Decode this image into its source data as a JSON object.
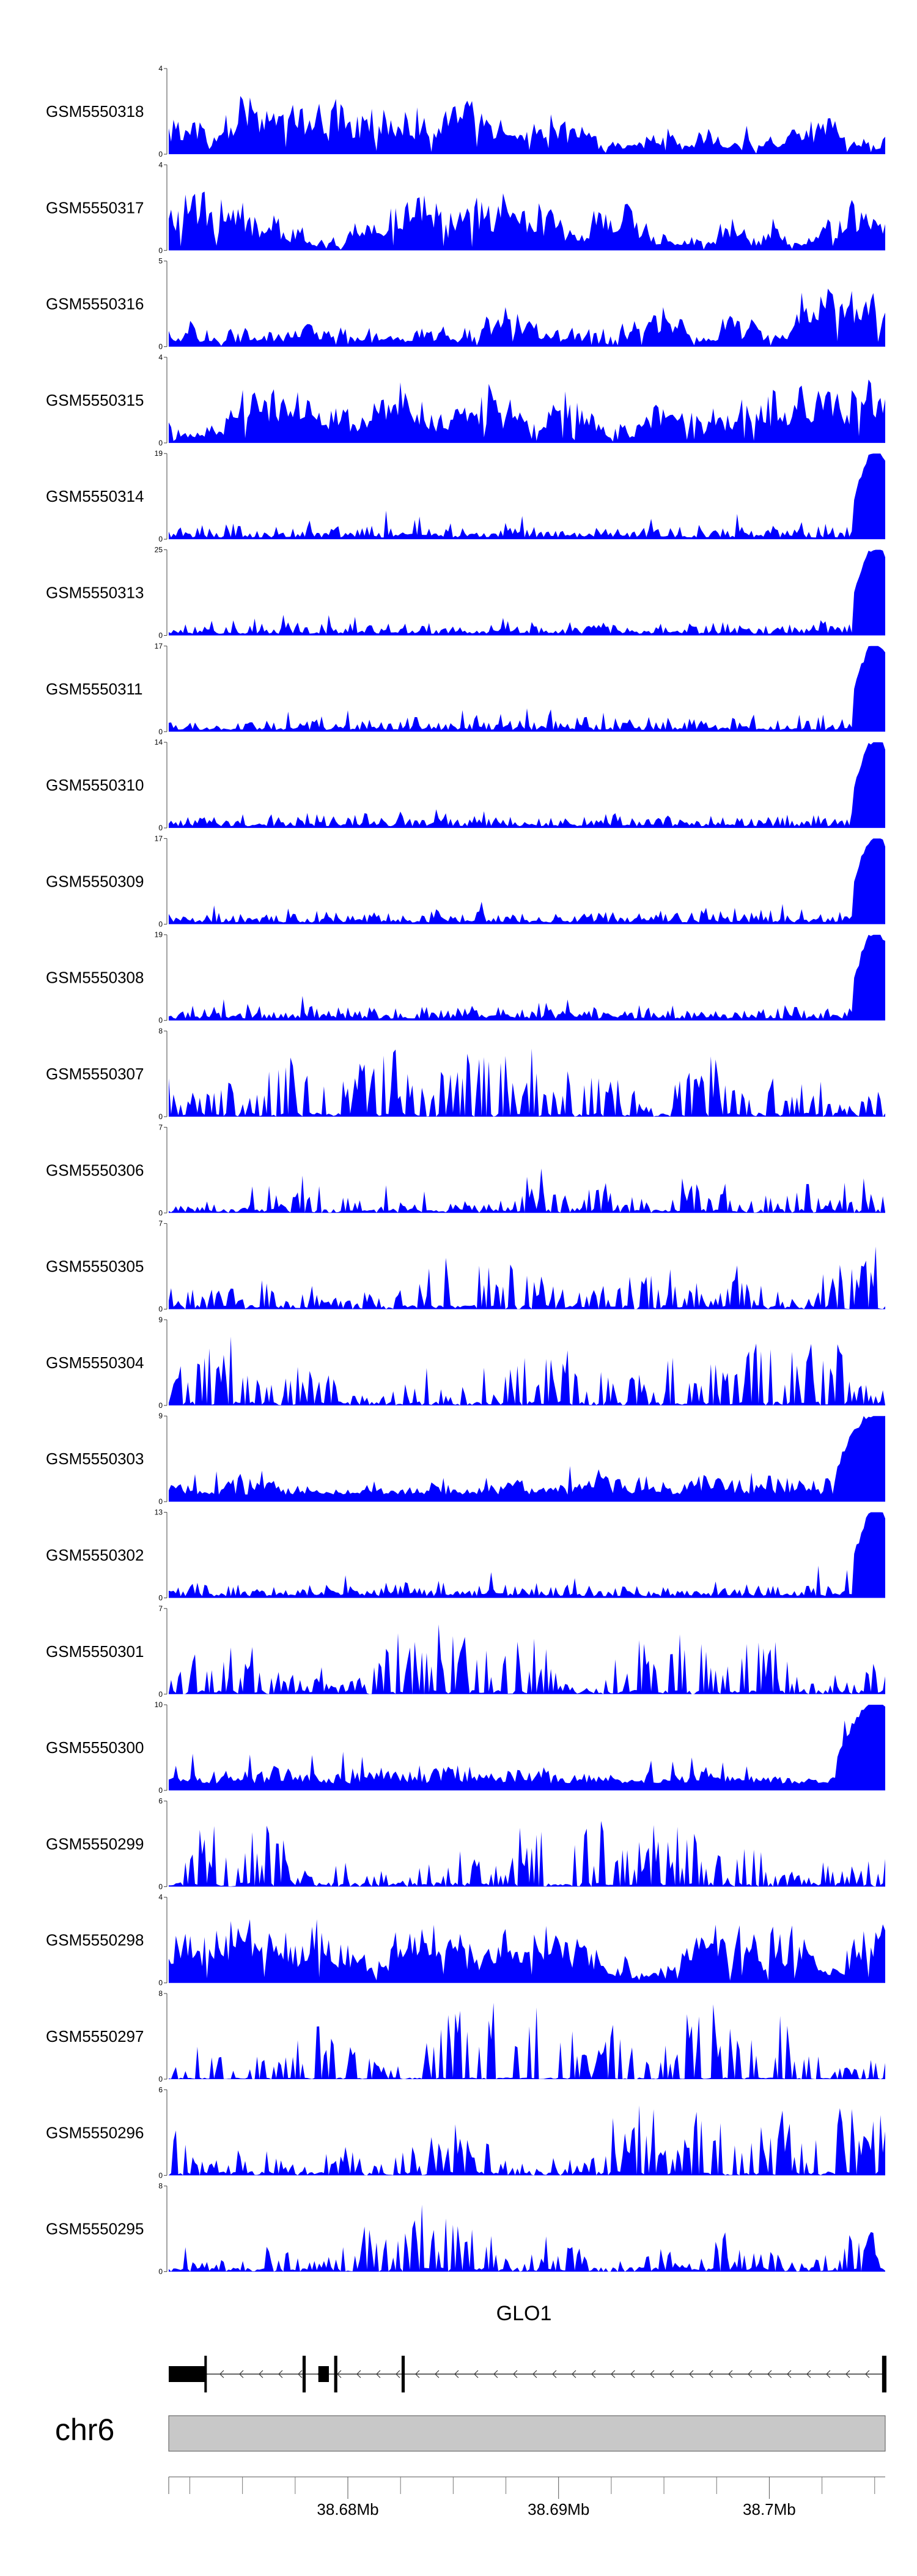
{
  "chart_data": {
    "type": "area",
    "series_color": "#0000ff",
    "x_domain_mb": [
      38.6715,
      38.7055
    ],
    "tracks": [
      {
        "name": "GSM5550318",
        "ymax": 4,
        "ylim": [
          0,
          4
        ],
        "y_ticks": [
          "0",
          "4"
        ],
        "seed": 1,
        "profile": "flat"
      },
      {
        "name": "GSM5550317",
        "ymax": 4,
        "ylim": [
          0,
          4
        ],
        "y_ticks": [
          "0",
          "4"
        ],
        "seed": 2,
        "profile": "flat"
      },
      {
        "name": "GSM5550316",
        "ymax": 5,
        "ylim": [
          0,
          5
        ],
        "y_ticks": [
          "0",
          "5"
        ],
        "seed": 3,
        "profile": "flat"
      },
      {
        "name": "GSM5550315",
        "ymax": 4,
        "ylim": [
          0,
          4
        ],
        "y_ticks": [
          "0",
          "4"
        ],
        "seed": 4,
        "profile": "flat"
      },
      {
        "name": "GSM5550314",
        "ymax": 19,
        "ylim": [
          0,
          19
        ],
        "y_ticks": [
          "0",
          "19"
        ],
        "seed": 5,
        "profile": "endpeak"
      },
      {
        "name": "GSM5550313",
        "ymax": 25,
        "ylim": [
          0,
          25
        ],
        "y_ticks": [
          "0",
          "25"
        ],
        "seed": 6,
        "profile": "endpeak"
      },
      {
        "name": "GSM5550311",
        "ymax": 17,
        "ylim": [
          0,
          17
        ],
        "y_ticks": [
          "0",
          "17"
        ],
        "seed": 7,
        "profile": "endpeak"
      },
      {
        "name": "GSM5550310",
        "ymax": 14,
        "ylim": [
          0,
          14
        ],
        "y_ticks": [
          "0",
          "14"
        ],
        "seed": 8,
        "profile": "endpeak"
      },
      {
        "name": "GSM5550309",
        "ymax": 17,
        "ylim": [
          0,
          17
        ],
        "y_ticks": [
          "0",
          "17"
        ],
        "seed": 9,
        "profile": "endpeak"
      },
      {
        "name": "GSM5550308",
        "ymax": 19,
        "ylim": [
          0,
          19
        ],
        "y_ticks": [
          "0",
          "19"
        ],
        "seed": 10,
        "profile": "endpeak"
      },
      {
        "name": "GSM5550307",
        "ymax": 8,
        "ylim": [
          0,
          8
        ],
        "y_ticks": [
          "0",
          "8"
        ],
        "seed": 11,
        "profile": "sparse"
      },
      {
        "name": "GSM5550306",
        "ymax": 7,
        "ylim": [
          0,
          7
        ],
        "y_ticks": [
          "0",
          "7"
        ],
        "seed": 12,
        "profile": "sparse"
      },
      {
        "name": "GSM5550305",
        "ymax": 7,
        "ylim": [
          0,
          7
        ],
        "y_ticks": [
          "0",
          "7"
        ],
        "seed": 13,
        "profile": "sparse"
      },
      {
        "name": "GSM5550304",
        "ymax": 9,
        "ylim": [
          0,
          9
        ],
        "y_ticks": [
          "0",
          "9"
        ],
        "seed": 14,
        "profile": "sparse"
      },
      {
        "name": "GSM5550303",
        "ymax": 9,
        "ylim": [
          0,
          9
        ],
        "y_ticks": [
          "0",
          "9"
        ],
        "seed": 15,
        "profile": "midend"
      },
      {
        "name": "GSM5550302",
        "ymax": 13,
        "ylim": [
          0,
          13
        ],
        "y_ticks": [
          "0",
          "13"
        ],
        "seed": 16,
        "profile": "endpeak"
      },
      {
        "name": "GSM5550301",
        "ymax": 7,
        "ylim": [
          0,
          7
        ],
        "y_ticks": [
          "0",
          "7"
        ],
        "seed": 17,
        "profile": "sparse"
      },
      {
        "name": "GSM5550300",
        "ymax": 10,
        "ylim": [
          0,
          10
        ],
        "y_ticks": [
          "0",
          "10"
        ],
        "seed": 18,
        "profile": "midend"
      },
      {
        "name": "GSM5550299",
        "ymax": 6,
        "ylim": [
          0,
          6
        ],
        "y_ticks": [
          "0",
          "6"
        ],
        "seed": 19,
        "profile": "sparse"
      },
      {
        "name": "GSM5550298",
        "ymax": 4,
        "ylim": [
          0,
          4
        ],
        "y_ticks": [
          "0",
          "4"
        ],
        "seed": 20,
        "profile": "flat"
      },
      {
        "name": "GSM5550297",
        "ymax": 8,
        "ylim": [
          0,
          8
        ],
        "y_ticks": [
          "0",
          "8"
        ],
        "seed": 21,
        "profile": "gappy"
      },
      {
        "name": "GSM5550296",
        "ymax": 6,
        "ylim": [
          0,
          6
        ],
        "y_ticks": [
          "0",
          "6"
        ],
        "seed": 22,
        "profile": "sparse"
      },
      {
        "name": "GSM5550295",
        "ymax": 8,
        "ylim": [
          0,
          8
        ],
        "y_ticks": [
          "0",
          "8"
        ],
        "seed": 23,
        "profile": "sparse"
      }
    ],
    "gene": {
      "name": "GLO1",
      "strand": "-",
      "exons_mb": [
        [
          38.6715,
          38.67325
        ],
        [
          38.67785,
          38.678
        ],
        [
          38.6786,
          38.6791
        ],
        [
          38.67935,
          38.6795
        ],
        [
          38.68255,
          38.6827
        ],
        [
          38.70535,
          38.7055
        ]
      ],
      "intron_mb": [
        38.6715,
        38.7055
      ]
    },
    "chromosome": {
      "name": "chr6"
    },
    "x_axis": {
      "tick_labels": [
        "38.68Mb",
        "38.69Mb",
        "38.7Mb"
      ],
      "tick_values_mb": [
        38.68,
        38.69,
        38.7
      ],
      "minor_tick_values_mb": [
        38.6725,
        38.675,
        38.6775,
        38.6825,
        38.685,
        38.6875,
        38.6925,
        38.695,
        38.6975,
        38.7025,
        38.705
      ]
    }
  }
}
